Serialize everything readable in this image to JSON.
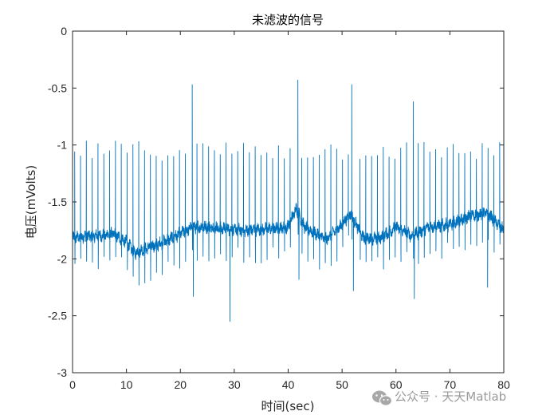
{
  "chart_data": {
    "type": "line",
    "title": "未滤波的信号",
    "xlabel": "时间(sec)",
    "ylabel": "电压(mVolts)",
    "xlim": [
      0,
      80
    ],
    "ylim": [
      -3,
      0
    ],
    "xticks": [
      0,
      10,
      20,
      30,
      40,
      50,
      60,
      70,
      80
    ],
    "xtick_labels": [
      "0",
      "10",
      "20",
      "30",
      "40",
      "50",
      "60",
      "70",
      "80"
    ],
    "yticks": [
      0,
      -0.5,
      -1,
      -1.5,
      -2,
      -2.5,
      -3
    ],
    "ytick_labels": [
      "0",
      "-0.5",
      "-1",
      "-1.5",
      "-2",
      "-2.5",
      "-3"
    ],
    "grid": false,
    "line_color": "#0072BD",
    "series": [
      {
        "x": [
          0,
          2.5,
          5,
          7.5,
          10,
          11.5,
          13,
          16,
          20,
          22.2,
          25,
          29,
          32,
          35,
          38,
          40,
          41.5,
          43,
          47,
          50,
          51.5,
          54,
          57,
          60,
          63,
          66,
          70,
          74,
          77,
          80
        ],
        "y": [
          -1.82,
          -1.8,
          -1.8,
          -1.78,
          -1.85,
          -1.95,
          -1.92,
          -1.87,
          -1.78,
          -1.72,
          -1.72,
          -1.74,
          -1.75,
          -1.74,
          -1.73,
          -1.72,
          -1.55,
          -1.72,
          -1.83,
          -1.7,
          -1.6,
          -1.82,
          -1.82,
          -1.72,
          -1.8,
          -1.72,
          -1.7,
          -1.62,
          -1.6,
          -1.75
        ]
      }
    ],
    "spikes": {
      "beat_period": 1.08,
      "r_peak_value": -1.05,
      "large_peaks": [
        {
          "x": 22.2,
          "y": -0.47
        },
        {
          "x": 41.8,
          "y": -0.43
        },
        {
          "x": 51.8,
          "y": -0.47
        },
        {
          "x": 63.2,
          "y": -0.62
        }
      ],
      "dips": [
        {
          "x": 22.4,
          "y": -2.33
        },
        {
          "x": 29.2,
          "y": -2.55
        },
        {
          "x": 42.0,
          "y": -2.18
        },
        {
          "x": 52.1,
          "y": -2.28
        },
        {
          "x": 63.4,
          "y": -2.35
        },
        {
          "x": 77.0,
          "y": -2.25
        }
      ]
    }
  },
  "watermark": {
    "text": "公众号 · 天天Matlab",
    "icon": "wechat-icon"
  }
}
